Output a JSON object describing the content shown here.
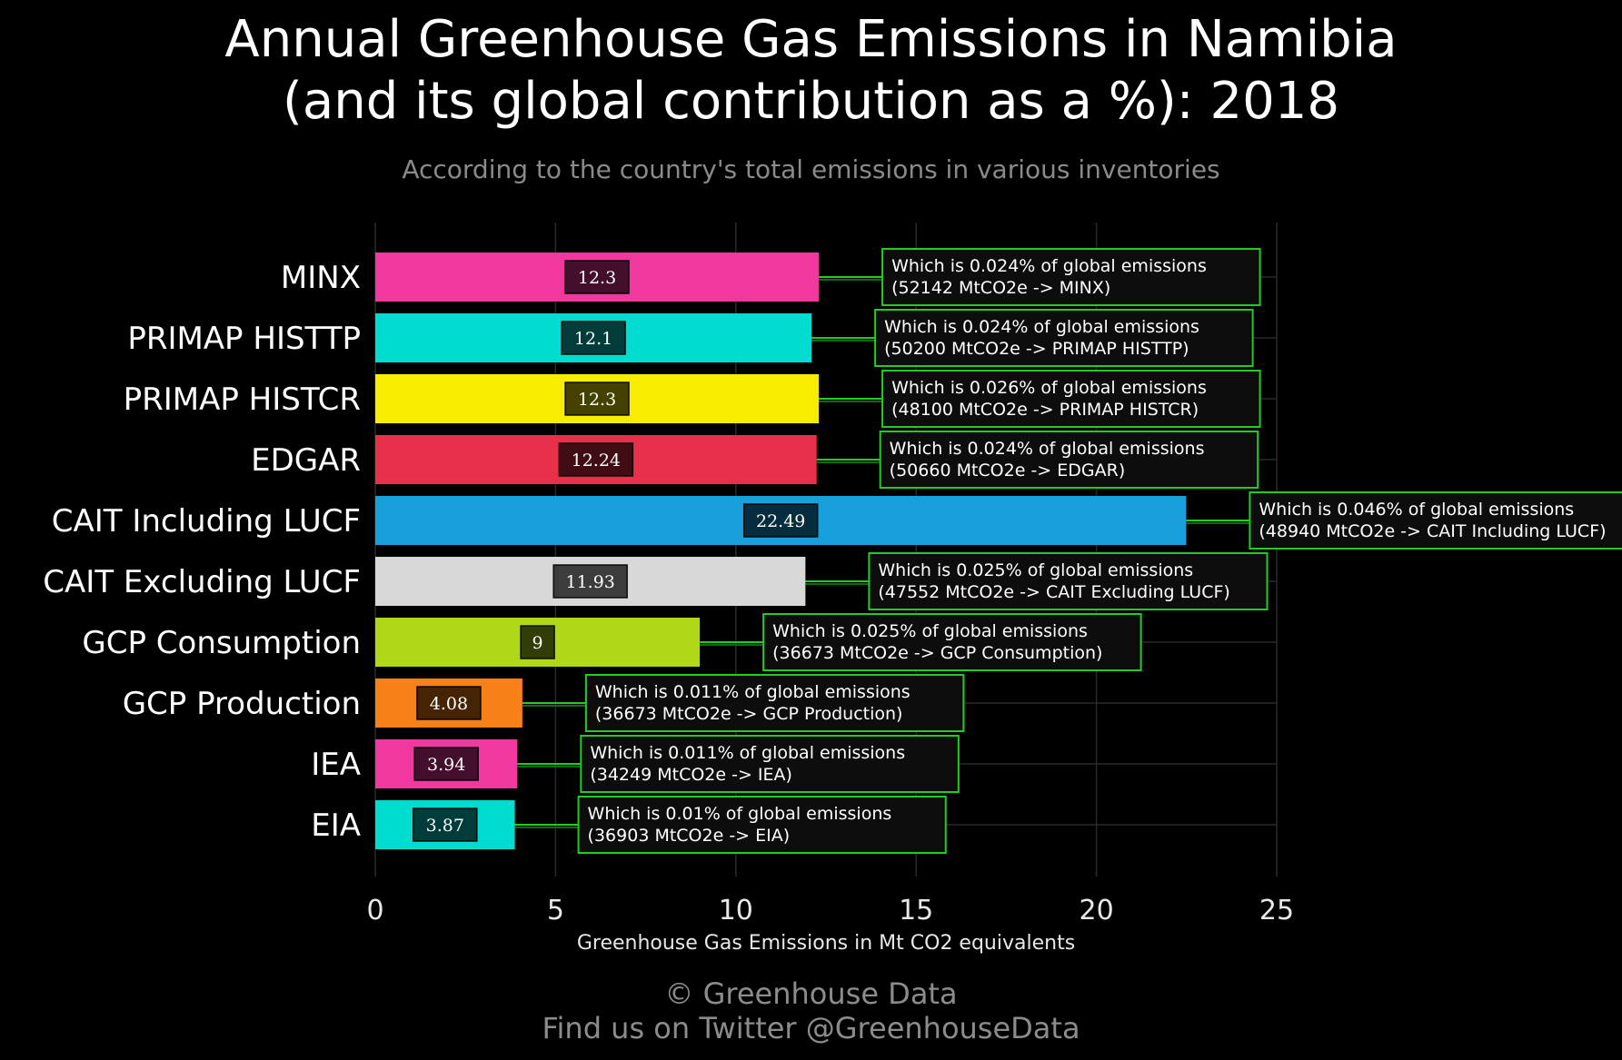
{
  "title_line1": "Annual Greenhouse Gas Emissions in Namibia",
  "title_line2": "(and its global contribution as a %): 2018",
  "subtitle": "According to the country's total emissions in various inventories",
  "footer_line1": "© Greenhouse Data",
  "footer_line2": "Find us on Twitter @GreenhouseData",
  "chart_data": {
    "type": "bar",
    "orientation": "horizontal",
    "title": "Annual Greenhouse Gas Emissions in Namibia (and its global contribution as a %): 2018",
    "subtitle": "According to the country's total emissions in various inventories",
    "xlabel": "Greenhouse Gas Emissions in Mt CO2 equivalents",
    "xlim": [
      0,
      25
    ],
    "xticks": [
      0,
      5,
      10,
      15,
      20,
      25
    ],
    "grid": true,
    "categories": [
      "MINX",
      "PRIMAP HISTTP",
      "PRIMAP HISTCR",
      "EDGAR",
      "CAIT Including LUCF",
      "CAIT Excluding LUCF",
      "GCP Consumption",
      "GCP Production",
      "IEA",
      "EIA"
    ],
    "values": [
      12.3,
      12.1,
      12.3,
      12.24,
      22.49,
      11.93,
      9,
      4.08,
      3.94,
      3.87
    ],
    "value_labels": [
      "12.3",
      "12.1",
      "12.3",
      "12.24",
      "22.49",
      "11.93",
      "9",
      "4.08",
      "3.94",
      "3.87"
    ],
    "colors": [
      "#f0389f",
      "#00dcd0",
      "#f8ec00",
      "#e8304a",
      "#18a0dc",
      "#d8d8d8",
      "#b0d818",
      "#f88018",
      "#f0389f",
      "#00dcd0"
    ],
    "annotations": [
      {
        "line1": "Which is 0.024% of global emissions",
        "line2": "(52142 MtCO2e -> MINX)"
      },
      {
        "line1": "Which is 0.024% of global emissions",
        "line2": "(50200 MtCO2e -> PRIMAP HISTTP)"
      },
      {
        "line1": "Which is 0.026% of global emissions",
        "line2": "(48100 MtCO2e -> PRIMAP HISTCR)"
      },
      {
        "line1": "Which is 0.024% of global emissions",
        "line2": "(50660 MtCO2e -> EDGAR)"
      },
      {
        "line1": "Which is 0.046% of global emissions",
        "line2": "(48940 MtCO2e -> CAIT Including LUCF)"
      },
      {
        "line1": "Which is 0.025% of global emissions",
        "line2": "(47552 MtCO2e -> CAIT Excluding LUCF)"
      },
      {
        "line1": "Which is 0.025% of global emissions",
        "line2": "(36673 MtCO2e -> GCP Consumption)"
      },
      {
        "line1": "Which is 0.011% of global emissions",
        "line2": "(36673 MtCO2e -> GCP Production)"
      },
      {
        "line1": "Which is 0.011% of global emissions",
        "line2": "(34249 MtCO2e -> IEA)"
      },
      {
        "line1": "Which is 0.01% of global emissions",
        "line2": "(36903 MtCO2e -> EIA)"
      }
    ],
    "annotation_border_color": "#22cc22",
    "text_color": "#ffffff",
    "grid_color": "#2a2a2a"
  }
}
